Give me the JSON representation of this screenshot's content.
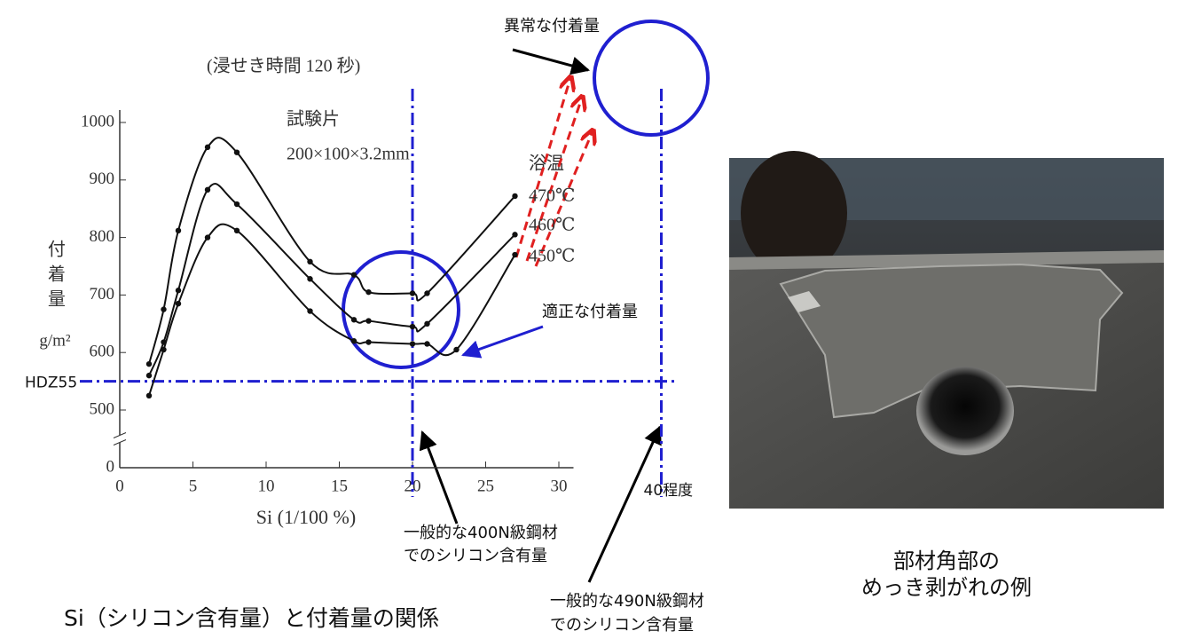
{
  "chart_data": {
    "type": "line",
    "subtitle": "(浸せき時間 120 秒)",
    "specimen_label": "試験片",
    "specimen_size": "200×100×3.2mm",
    "legend_title": "浴温",
    "x_label": "Si (1/100 %)",
    "y_label": "付着量",
    "y_unit": "g/m²",
    "xlim": [
      0,
      31
    ],
    "xticks": [
      0,
      5,
      10,
      15,
      20,
      25,
      30
    ],
    "ylim": [
      0,
      1000
    ],
    "yticks": [
      0,
      500,
      600,
      700,
      800,
      900,
      1000
    ],
    "y_axis_break": true,
    "series": [
      {
        "name": "470℃",
        "color": "#111111",
        "x": [
          2,
          3,
          4,
          6,
          8,
          13,
          16,
          17,
          20,
          21,
          27
        ],
        "values": [
          580,
          675,
          812,
          957,
          948,
          758,
          735,
          705,
          703,
          703,
          872
        ]
      },
      {
        "name": "460℃",
        "color": "#111111",
        "x": [
          2,
          3,
          4,
          6,
          8,
          13,
          16,
          17,
          20,
          21,
          27
        ],
        "values": [
          560,
          618,
          708,
          883,
          858,
          728,
          657,
          655,
          645,
          650,
          805
        ]
      },
      {
        "name": "450℃",
        "color": "#111111",
        "x": [
          2,
          3,
          4,
          6,
          8,
          13,
          16,
          17,
          20,
          21,
          23,
          27
        ],
        "values": [
          525,
          605,
          685,
          800,
          812,
          672,
          620,
          618,
          615,
          615,
          605,
          770
        ]
      }
    ],
    "reference_color": "#1f1fd0",
    "reference_lines": [
      {
        "axis": "y",
        "value": 550,
        "label": "HDZ55"
      },
      {
        "axis": "x",
        "value": 20
      },
      {
        "axis": "x",
        "value": 37,
        "label": "40程度"
      }
    ]
  },
  "annotations": {
    "abnormal": "異常な付着量",
    "proper": "適正な付着量",
    "steel400": [
      "一般的な400N級鋼材",
      "でのシリコン含有量"
    ],
    "steel490": [
      "一般的な490N級鋼材",
      "でのシリコン含有量"
    ]
  },
  "caption": "Si（シリコン含有量）と付着量の関係",
  "photo_caption": [
    "部材角部の",
    "めっき剥がれの例"
  ]
}
